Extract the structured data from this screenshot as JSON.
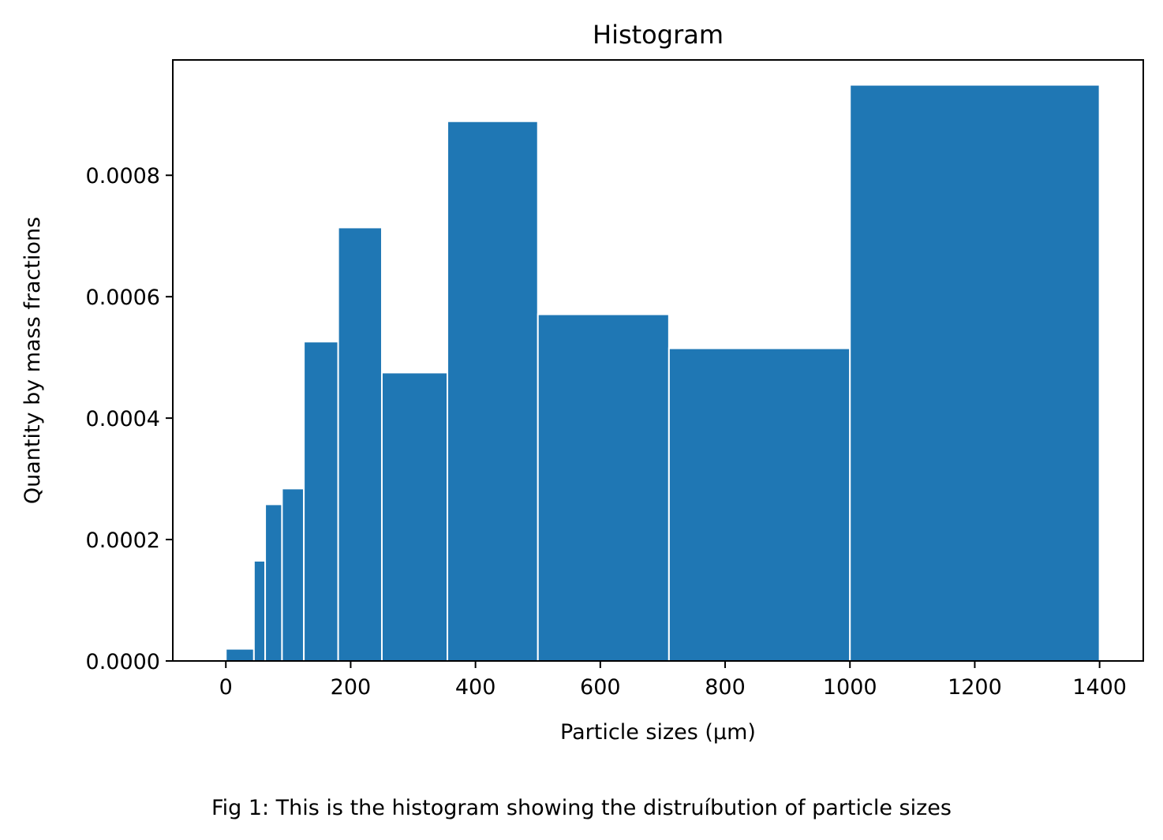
{
  "chart_data": {
    "type": "bar",
    "subtype": "histogram",
    "title": "Histogram",
    "xlabel": "Particle sizes (µm)",
    "ylabel": "Quantity by mass fractions",
    "caption": "Fig 1: This is the histogram showing the distruíbution of particle sizes",
    "xlim": [
      -85,
      1470
    ],
    "ylim": [
      0,
      0.00099
    ],
    "xticks": [
      0,
      200,
      400,
      600,
      800,
      1000,
      1200,
      1400
    ],
    "xtick_labels": [
      "0",
      "200",
      "400",
      "600",
      "800",
      "1000",
      "1200",
      "1400"
    ],
    "yticks": [
      0,
      0.0002,
      0.0004,
      0.0006,
      0.0008
    ],
    "ytick_labels": [
      "0.0000",
      "0.0002",
      "0.0004",
      "0.0006",
      "0.0008"
    ],
    "grid": false,
    "legend": "none",
    "bar_color": "#1f77b4",
    "edge_color": "#ffffff",
    "bins": [
      {
        "start": 0,
        "end": 45,
        "value": 2e-05
      },
      {
        "start": 45,
        "end": 63,
        "value": 0.000165
      },
      {
        "start": 63,
        "end": 90,
        "value": 0.000258
      },
      {
        "start": 90,
        "end": 125,
        "value": 0.000284
      },
      {
        "start": 125,
        "end": 180,
        "value": 0.000526
      },
      {
        "start": 180,
        "end": 250,
        "value": 0.000714
      },
      {
        "start": 250,
        "end": 355,
        "value": 0.000475
      },
      {
        "start": 355,
        "end": 500,
        "value": 0.000889
      },
      {
        "start": 500,
        "end": 710,
        "value": 0.000571
      },
      {
        "start": 710,
        "end": 1000,
        "value": 0.000515
      },
      {
        "start": 1000,
        "end": 1400,
        "value": 0.000949
      }
    ]
  }
}
